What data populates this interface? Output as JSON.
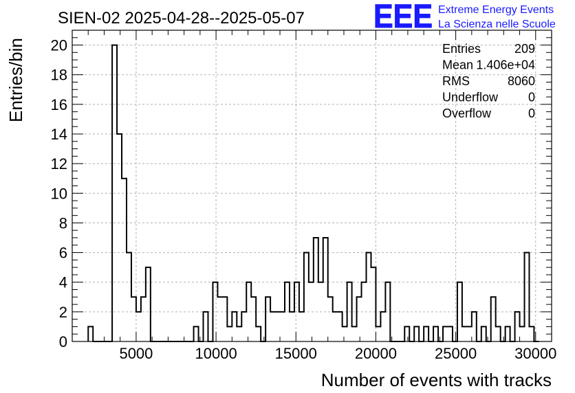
{
  "chart_data": {
    "type": "bar",
    "title": "SIEN-02 2025-04-28--2025-05-07",
    "xlabel": "Number of events with tracks",
    "ylabel": "Entries/bin",
    "xlim": [
      1000,
      31000
    ],
    "ylim": [
      0,
      21
    ],
    "xticks": [
      5000,
      10000,
      15000,
      20000,
      25000,
      30000
    ],
    "yticks": [
      0,
      2,
      4,
      6,
      8,
      10,
      12,
      14,
      16,
      18,
      20
    ],
    "grid": true,
    "bin_width": 300,
    "bin_edges_start": 2000,
    "values": [
      1,
      0,
      0,
      0,
      0,
      20,
      14,
      11,
      6,
      3,
      2,
      3,
      5,
      0,
      0,
      0,
      0,
      0,
      0,
      0,
      0,
      0,
      1,
      0,
      2,
      0,
      4,
      3,
      3,
      1,
      2,
      1,
      2,
      4,
      3,
      1,
      0,
      3,
      2,
      2,
      2,
      4,
      2,
      4,
      2,
      6,
      4,
      7,
      4,
      7,
      3,
      2,
      2,
      1,
      4,
      1,
      3,
      4,
      6,
      5,
      1,
      2,
      4,
      0,
      0,
      0,
      1,
      0,
      1,
      0,
      1,
      0,
      1,
      0,
      1,
      1,
      0,
      4,
      1,
      1,
      2,
      0,
      1,
      0,
      3,
      1,
      0,
      1,
      0,
      2,
      1,
      6,
      1,
      0
    ],
    "stats": [
      {
        "label": "Entries",
        "value": "209"
      },
      {
        "label": "Mean",
        "value": "1.406e+04"
      },
      {
        "label": "RMS",
        "value": "8060"
      },
      {
        "label": "Underflow",
        "value": "0"
      },
      {
        "label": "Overflow",
        "value": "0"
      }
    ],
    "histogram_style": "step-outline",
    "line_color": "#000000"
  },
  "logo": {
    "text": "EEE",
    "line1": "Extreme Energy Events",
    "line2": "La Scienza nelle Scuole",
    "color": "#1a1aff"
  }
}
